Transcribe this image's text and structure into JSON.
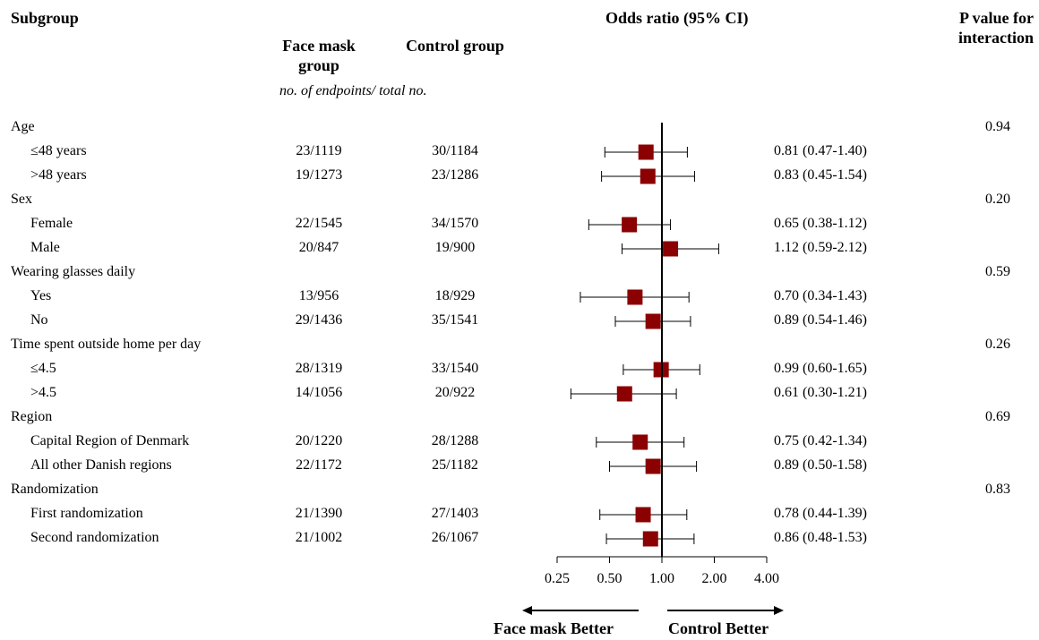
{
  "headers": {
    "subgroup": "Subgroup",
    "facemask": "Face mask group",
    "control": "Control group",
    "subheader": "no. of endpoints/ total no.",
    "odds": "Odds ratio (95% CI)",
    "pvalue": "P value for interaction"
  },
  "footer": {
    "left_label": "Face mask Better",
    "right_label": "Control Better"
  },
  "chart_data": {
    "type": "forest",
    "x_scale": "log2",
    "xlim": [
      0.25,
      4.0
    ],
    "reference_line": 1.0,
    "ticks": [
      "0.25",
      "0.50",
      "1.00",
      "2.00",
      "4.00"
    ],
    "tick_values": [
      0.25,
      0.5,
      1.0,
      2.0,
      4.0
    ],
    "marker_color": "#8b0000",
    "rows": [
      {
        "kind": "group",
        "label": "Age",
        "p": "0.94"
      },
      {
        "kind": "item",
        "label": "≤48 years",
        "fm": "23/1119",
        "ctrl": "30/1184",
        "or": 0.81,
        "lo": 0.47,
        "hi": 1.4,
        "ci": "0.81 (0.47-1.40)"
      },
      {
        "kind": "item",
        "label": ">48 years",
        "fm": "19/1273",
        "ctrl": "23/1286",
        "or": 0.83,
        "lo": 0.45,
        "hi": 1.54,
        "ci": "0.83 (0.45-1.54)"
      },
      {
        "kind": "group",
        "label": "Sex",
        "p": "0.20"
      },
      {
        "kind": "item",
        "label": "Female",
        "fm": "22/1545",
        "ctrl": "34/1570",
        "or": 0.65,
        "lo": 0.38,
        "hi": 1.12,
        "ci": "0.65 (0.38-1.12)"
      },
      {
        "kind": "item",
        "label": "Male",
        "fm": "20/847",
        "ctrl": "19/900",
        "or": 1.12,
        "lo": 0.59,
        "hi": 2.12,
        "ci": "1.12 (0.59-2.12)"
      },
      {
        "kind": "group",
        "label": "Wearing glasses daily",
        "p": "0.59"
      },
      {
        "kind": "item",
        "label": "Yes",
        "fm": "13/956",
        "ctrl": "18/929",
        "or": 0.7,
        "lo": 0.34,
        "hi": 1.43,
        "ci": "0.70 (0.34-1.43)"
      },
      {
        "kind": "item",
        "label": "No",
        "fm": "29/1436",
        "ctrl": "35/1541",
        "or": 0.89,
        "lo": 0.54,
        "hi": 1.46,
        "ci": "0.89 (0.54-1.46)"
      },
      {
        "kind": "group",
        "label": "Time spent outside home per day",
        "p": "0.26"
      },
      {
        "kind": "item",
        "label": "≤4.5",
        "fm": "28/1319",
        "ctrl": "33/1540",
        "or": 0.99,
        "lo": 0.6,
        "hi": 1.65,
        "ci": "0.99 (0.60-1.65)"
      },
      {
        "kind": "item",
        "label": ">4.5",
        "fm": "14/1056",
        "ctrl": "20/922",
        "or": 0.61,
        "lo": 0.3,
        "hi": 1.21,
        "ci": "0.61 (0.30-1.21)"
      },
      {
        "kind": "group",
        "label": "Region",
        "p": "0.69"
      },
      {
        "kind": "item",
        "label": "Capital Region of Denmark",
        "fm": "20/1220",
        "ctrl": "28/1288",
        "or": 0.75,
        "lo": 0.42,
        "hi": 1.34,
        "ci": "0.75 (0.42-1.34)"
      },
      {
        "kind": "item",
        "label": "All other Danish regions",
        "fm": "22/1172",
        "ctrl": "25/1182",
        "or": 0.89,
        "lo": 0.5,
        "hi": 1.58,
        "ci": "0.89 (0.50-1.58)"
      },
      {
        "kind": "group",
        "label": "Randomization",
        "p": "0.83"
      },
      {
        "kind": "item",
        "label": "First randomization",
        "fm": "21/1390",
        "ctrl": "27/1403",
        "or": 0.78,
        "lo": 0.44,
        "hi": 1.39,
        "ci": "0.78 (0.44-1.39)"
      },
      {
        "kind": "item",
        "label": "Second randomization",
        "fm": "21/1002",
        "ctrl": "26/1067",
        "or": 0.86,
        "lo": 0.48,
        "hi": 1.53,
        "ci": "0.86 (0.48-1.53)"
      }
    ]
  }
}
